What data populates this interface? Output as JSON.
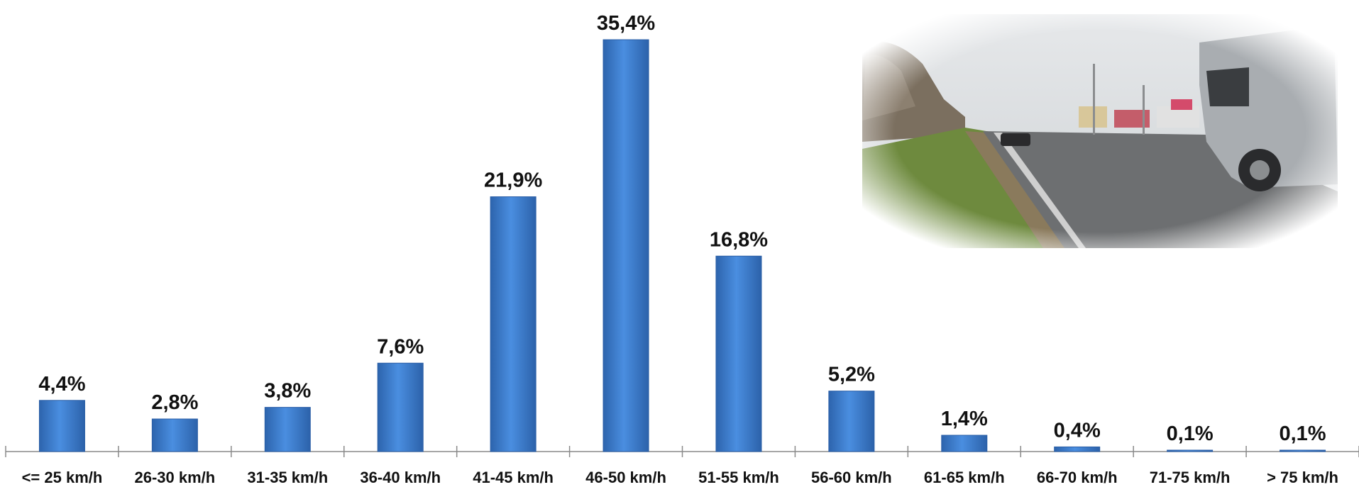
{
  "chart_data": {
    "type": "bar",
    "categories": [
      "<= 25 km/h",
      "26-30 km/h",
      "31-35 km/h",
      "36-40 km/h",
      "41-45 km/h",
      "46-50 km/h",
      "51-55 km/h",
      "56-60 km/h",
      "61-65 km/h",
      "66-70 km/h",
      "71-75 km/h",
      "> 75 km/h"
    ],
    "values": [
      4.4,
      2.8,
      3.8,
      7.6,
      21.9,
      35.4,
      16.8,
      5.2,
      1.4,
      0.4,
      0.1,
      0.1
    ],
    "value_labels": [
      "4,4%",
      "2,8%",
      "3,8%",
      "7,6%",
      "21,9%",
      "35,4%",
      "16,8%",
      "5,2%",
      "1,4%",
      "0,4%",
      "0,1%",
      "0,1%"
    ],
    "ylim": [
      0,
      35.4
    ],
    "grid": false,
    "bar_color": "#3a7bd0",
    "bar_edge_color": "#2a5ea6"
  },
  "photo": {
    "icon": "street-photo-icon",
    "scene": "road-with-truck"
  }
}
